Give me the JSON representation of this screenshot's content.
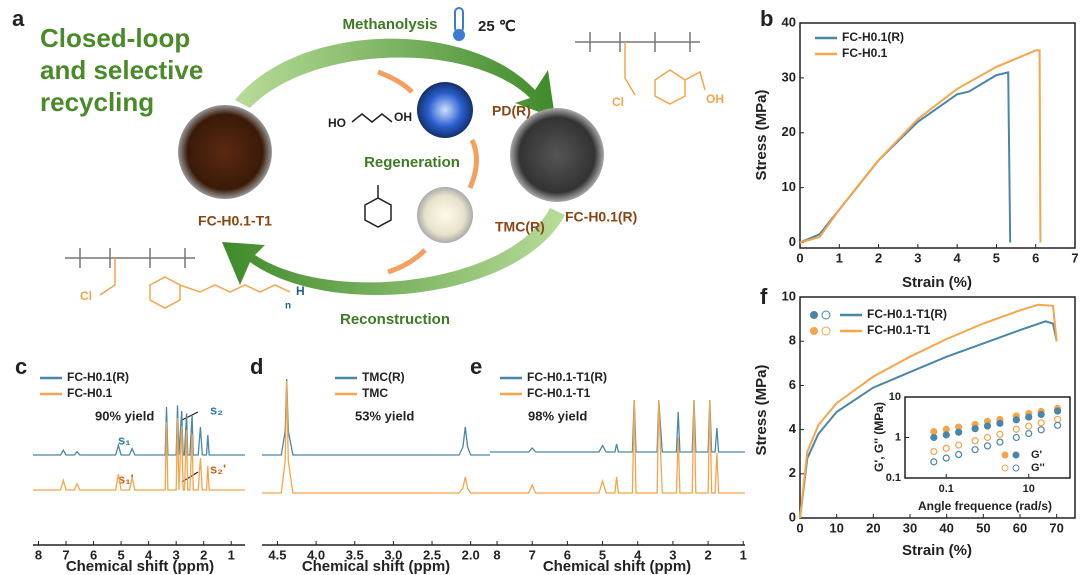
{
  "diagram": {
    "panel": "a",
    "title": [
      "Closed-loop",
      "and selective",
      "recycling"
    ],
    "step_top": "Methanolysis",
    "temperature": "25 ℃",
    "regeneration": "Regeneration",
    "step_bottom": "Reconstruction",
    "pd": "PD(R)",
    "tmc": "TMC(R)",
    "left_sample": "FC-H0.1-T1",
    "right_sample": "FC-H0.1(R)",
    "diol_left": "HO",
    "diol_right": "OH",
    "top_structure_oh": "OH",
    "top_structure_cl": "Cl",
    "bottom_structure_cl": "Cl",
    "bottom_structure_n": "n",
    "bottom_structure_h": "H"
  },
  "chart_data": [
    {
      "type": "line",
      "panel": "b",
      "xlabel": "Strain (%)",
      "ylabel": "Stress (MPa)",
      "xlim": [
        0,
        7
      ],
      "ylim": [
        -1,
        40
      ],
      "xticks": [
        0,
        1,
        2,
        3,
        4,
        5,
        6,
        7
      ],
      "yticks": [
        0,
        10,
        20,
        30,
        40
      ],
      "series": [
        {
          "name": "FC-H0.1(R)",
          "color": "#4a86a8",
          "x": [
            0,
            0.5,
            1,
            2,
            3,
            4,
            4.3,
            5,
            5.3,
            5.35
          ],
          "values": [
            0,
            1.5,
            6,
            15,
            22,
            27,
            27.5,
            30.5,
            31,
            0
          ]
        },
        {
          "name": "FC-H0.1",
          "color": "#f5a54a",
          "x": [
            0,
            0.5,
            1,
            2,
            3,
            4,
            5,
            6,
            6.1,
            6.12
          ],
          "values": [
            0,
            1,
            6,
            15,
            22.5,
            28,
            32,
            35,
            35,
            0
          ]
        }
      ]
    },
    {
      "type": "spectrum",
      "panel": "c",
      "xlabel": "Chemical shift (ppm)",
      "xlim": [
        8.2,
        0.5
      ],
      "xticks": [
        8,
        7,
        6,
        5,
        4,
        3,
        2,
        1
      ],
      "annotations": [
        "90% yield",
        "s₁",
        "s₂",
        "s₁'",
        "s₂'"
      ],
      "x": [
        8.2,
        7.2,
        7.1,
        7.0,
        6.7,
        6.6,
        6.5,
        5.2,
        5.1,
        5.0,
        4.7,
        4.6,
        4.5,
        3.4,
        3.35,
        3.3,
        3.0,
        2.95,
        2.9,
        2.8,
        2.75,
        2.7,
        2.62,
        2.58,
        2.5,
        2.42,
        2.38,
        2.2,
        2.12,
        2.05,
        1.9,
        1.85,
        1.8,
        0.5
      ],
      "series": [
        {
          "name": "FC-H0.1(R)",
          "color": "#4a86a8",
          "values": [
            0,
            0,
            0.06,
            0,
            0,
            0.04,
            0,
            0,
            0.12,
            0,
            0,
            0.08,
            0,
            0,
            0.6,
            0,
            0,
            0.62,
            0,
            0.55,
            0,
            0,
            0.52,
            0,
            0,
            0.5,
            0,
            0,
            0.35,
            0,
            0,
            0.25,
            0,
            0
          ]
        },
        {
          "name": "FC-H0.1",
          "color": "#f5a54a",
          "values": [
            0,
            0,
            0.12,
            0,
            0,
            0.08,
            0,
            0,
            0.2,
            0,
            0,
            0.15,
            0,
            0,
            0.85,
            0,
            0,
            0.9,
            0,
            0.8,
            0,
            0,
            0.75,
            0,
            0,
            0.7,
            0,
            0,
            0.4,
            0,
            0,
            0.3,
            0,
            0
          ]
        }
      ]
    },
    {
      "type": "spectrum",
      "panel": "d",
      "xlabel": "Chemical shift (ppm)",
      "xlim": [
        4.7,
        1.75
      ],
      "xticks": [
        4.5,
        {
          "value": 4,
          "label": "4.0"
        },
        3.5,
        {
          "value": 3,
          "label": "3.0"
        },
        2.5,
        {
          "value": 2,
          "label": "2.0"
        }
      ],
      "annotations": [
        "53% yield"
      ],
      "x": [
        4.7,
        4.45,
        4.4,
        4.38,
        4.36,
        4.3,
        2.15,
        2.1,
        2.07,
        2.04,
        2.0,
        1.75
      ],
      "series": [
        {
          "name": "TMC(R)",
          "color": "#4a86a8",
          "values": [
            0,
            0,
            0.3,
            0.95,
            0.3,
            0,
            0,
            0.1,
            0.35,
            0.1,
            0,
            0
          ]
        },
        {
          "name": "TMC",
          "color": "#f5a54a",
          "values": [
            0,
            0,
            0.4,
            1.4,
            0.4,
            0,
            0,
            0.06,
            0.2,
            0.06,
            0,
            0
          ]
        }
      ]
    },
    {
      "type": "spectrum",
      "panel": "e",
      "xlabel": "Chemical shift (ppm)",
      "xlim": [
        8.2,
        0.95
      ],
      "xticks": [
        8,
        7,
        6,
        5,
        4,
        3,
        2,
        1
      ],
      "annotations": [
        "98% yield"
      ],
      "x": [
        8.2,
        7.1,
        7.0,
        6.9,
        5.1,
        5.0,
        4.9,
        4.65,
        4.6,
        4.55,
        4.15,
        4.1,
        4.05,
        3.45,
        3.4,
        3.35,
        3.3,
        2.9,
        2.85,
        2.8,
        2.45,
        2.4,
        2.35,
        2.0,
        1.95,
        1.9,
        1.8,
        1.75,
        1.7,
        0.95
      ],
      "series": [
        {
          "name": "FC-H0.1-T1(R)",
          "color": "#4a86a8",
          "values": [
            0,
            0,
            0.05,
            0,
            0,
            0.08,
            0,
            0,
            0.1,
            0,
            0,
            0.65,
            0,
            0,
            0.65,
            0.3,
            0,
            0,
            0.5,
            0,
            0,
            0.65,
            0,
            0,
            0.65,
            0,
            0,
            0.3,
            0,
            0
          ]
        },
        {
          "name": "FC-H0.1-T1",
          "color": "#f5a54a",
          "values": [
            0,
            0,
            0.1,
            0,
            0,
            0.15,
            0,
            0,
            0.2,
            0,
            0,
            1.16,
            0,
            0,
            1.16,
            0.5,
            0,
            0,
            0.7,
            0,
            0,
            1.16,
            0,
            0,
            1.16,
            0,
            0,
            0.5,
            0,
            0
          ]
        }
      ]
    },
    {
      "type": "line",
      "panel": "f",
      "xlabel": "Strain (%)",
      "ylabel": "Stress (MPa)",
      "xlim": [
        0,
        75
      ],
      "ylim": [
        0,
        10
      ],
      "xticks": [
        0,
        10,
        20,
        30,
        40,
        50,
        60,
        70
      ],
      "yticks": [
        0,
        2,
        4,
        6,
        8,
        10
      ],
      "legend_markers": true,
      "series": [
        {
          "name": "FC-H0.1-T1(R)",
          "color": "#4a86a8",
          "x": [
            0,
            2,
            5,
            10,
            20,
            30,
            40,
            50,
            60,
            67,
            69,
            70
          ],
          "values": [
            0,
            2.7,
            3.8,
            4.8,
            5.9,
            6.6,
            7.3,
            7.9,
            8.5,
            8.9,
            8.8,
            8.0
          ]
        },
        {
          "name": "FC-H0.1-T1",
          "color": "#f5a54a",
          "x": [
            0,
            2,
            5,
            10,
            20,
            30,
            40,
            50,
            60,
            65,
            69,
            70
          ],
          "values": [
            0,
            3,
            4.2,
            5.2,
            6.4,
            7.3,
            8.1,
            8.8,
            9.4,
            9.65,
            9.6,
            8.0
          ]
        }
      ]
    },
    {
      "type": "scatter",
      "xlabel": "Angle frequence (rad/s)",
      "ylabel": "G', G'' (MPa)",
      "log_x": true,
      "log_y": true,
      "xlim": [
        0.01,
        100
      ],
      "ylim": [
        0.1,
        10
      ],
      "xticks": [
        0.1,
        10
      ],
      "yticks": [
        0.1,
        1,
        10
      ],
      "x": [
        0.05,
        0.1,
        0.2,
        0.5,
        1,
        2,
        5,
        10,
        20,
        50
      ],
      "series": [
        {
          "name": "G'",
          "color": "#f5a54a",
          "filled": true,
          "values": [
            1.4,
            1.6,
            1.8,
            2.1,
            2.5,
            2.8,
            3.4,
            3.9,
            4.4,
            5.2
          ]
        },
        {
          "name": "G'",
          "color": "#4a86a8",
          "filled": true,
          "values": [
            1.0,
            1.16,
            1.35,
            1.65,
            1.92,
            2.24,
            2.73,
            3.2,
            3.7,
            4.5
          ]
        },
        {
          "name": "G''",
          "color": "#f5a54a",
          "filled": false,
          "values": [
            0.45,
            0.54,
            0.65,
            0.83,
            1.0,
            1.2,
            1.6,
            1.9,
            2.3,
            2.8
          ]
        },
        {
          "name": "G''",
          "color": "#4a86a8",
          "filled": false,
          "values": [
            0.25,
            0.31,
            0.38,
            0.5,
            0.62,
            0.77,
            1.0,
            1.25,
            1.55,
            2.0
          ]
        }
      ]
    }
  ]
}
